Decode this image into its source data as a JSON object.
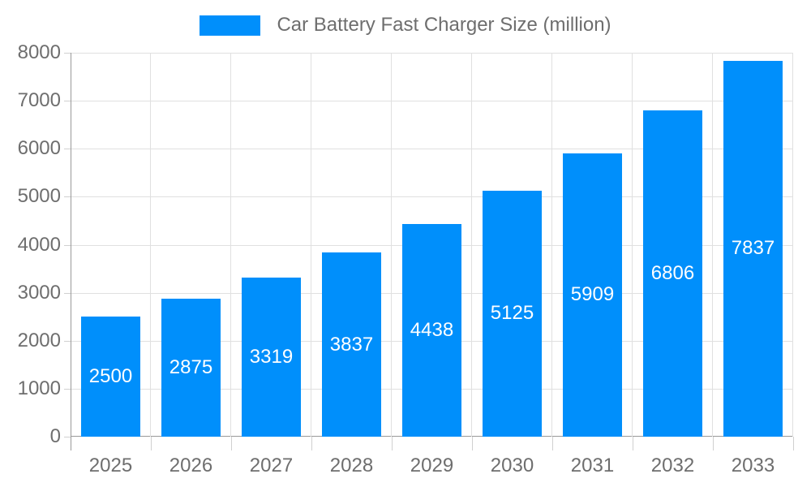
{
  "chart_data": {
    "type": "bar",
    "title": "Car Battery Fast Charger Size (million)",
    "categories": [
      "2025",
      "2026",
      "2027",
      "2028",
      "2029",
      "2030",
      "2031",
      "2032",
      "2033"
    ],
    "values": [
      2500,
      2875,
      3319,
      3837,
      4438,
      5125,
      5909,
      6806,
      7837
    ],
    "xlabel": "",
    "ylabel": "",
    "ylim": [
      0,
      8000
    ],
    "ytick_step": 1000,
    "grid": true,
    "legend_position": "top",
    "bar_labels_inside": true,
    "colors": {
      "bar": "#008FFB",
      "bar_label": "#FFFFFF",
      "axis_text": "#6E6E6E",
      "gridline": "#E0E0E0",
      "axis_line": "#9A9A9A",
      "tick": "#D0D0D0",
      "background": "#FFFFFF"
    }
  }
}
